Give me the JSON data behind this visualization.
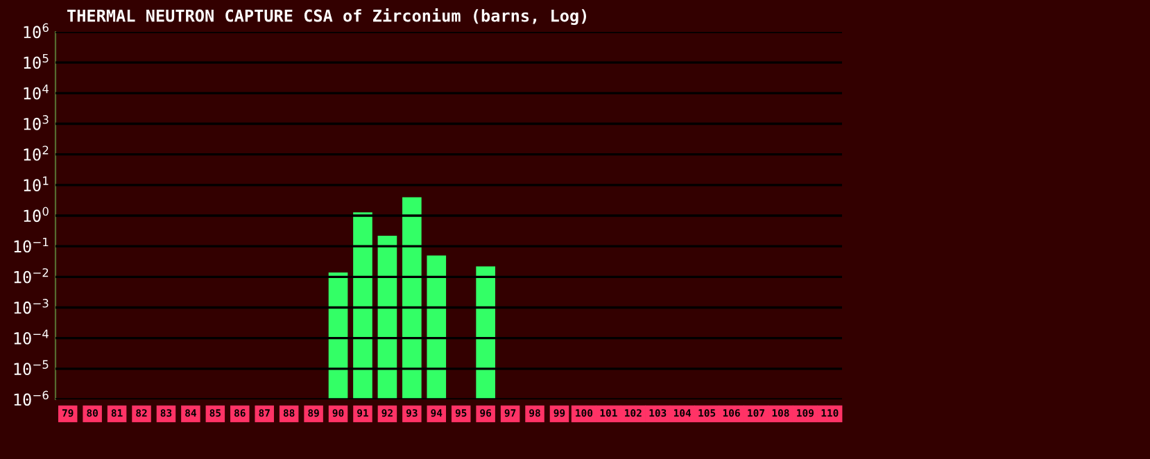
{
  "chart_data": {
    "type": "bar",
    "title": "THERMAL NEUTRON CAPTURE CSA of Zirconium (barns, Log)",
    "categories": [
      "79",
      "80",
      "81",
      "82",
      "83",
      "84",
      "85",
      "86",
      "87",
      "88",
      "89",
      "90",
      "91",
      "92",
      "93",
      "94",
      "95",
      "96",
      "97",
      "98",
      "99",
      "100",
      "101",
      "102",
      "103",
      "104",
      "105",
      "106",
      "107",
      "108",
      "109",
      "110"
    ],
    "values": [
      null,
      null,
      null,
      null,
      null,
      null,
      null,
      null,
      null,
      null,
      null,
      0.014,
      1.28,
      0.22,
      4.0,
      0.05,
      null,
      0.022,
      null,
      null,
      null,
      null,
      null,
      null,
      null,
      null,
      null,
      null,
      null,
      null,
      null,
      null
    ],
    "color": "#33ff66",
    "log": "y",
    "ylim": [
      1e-06,
      1000000.0
    ],
    "yticks": [
      {
        "value": 1e-06,
        "label": "10$^{−6}$"
      },
      {
        "value": 1e-05,
        "label": "10$^{−5}$"
      },
      {
        "value": 0.0001,
        "label": "10$^{−4}$"
      },
      {
        "value": 0.001,
        "label": "10$^{−3}$"
      },
      {
        "value": 0.01,
        "label": "10$^{−2}$"
      },
      {
        "value": 0.1,
        "label": "10$^{−1}$"
      },
      {
        "value": 1,
        "label": "10$^{0}$"
      },
      {
        "value": 10,
        "label": "10$^{1}$"
      },
      {
        "value": 100,
        "label": "10$^{2}$"
      },
      {
        "value": 1000,
        "label": "10$^{3}$"
      },
      {
        "value": 10000,
        "label": "10$^{4}$"
      },
      {
        "value": 100000,
        "label": "10$^{5}$"
      },
      {
        "value": 1000000,
        "label": "10$^{6}$"
      }
    ],
    "grid": "y"
  }
}
